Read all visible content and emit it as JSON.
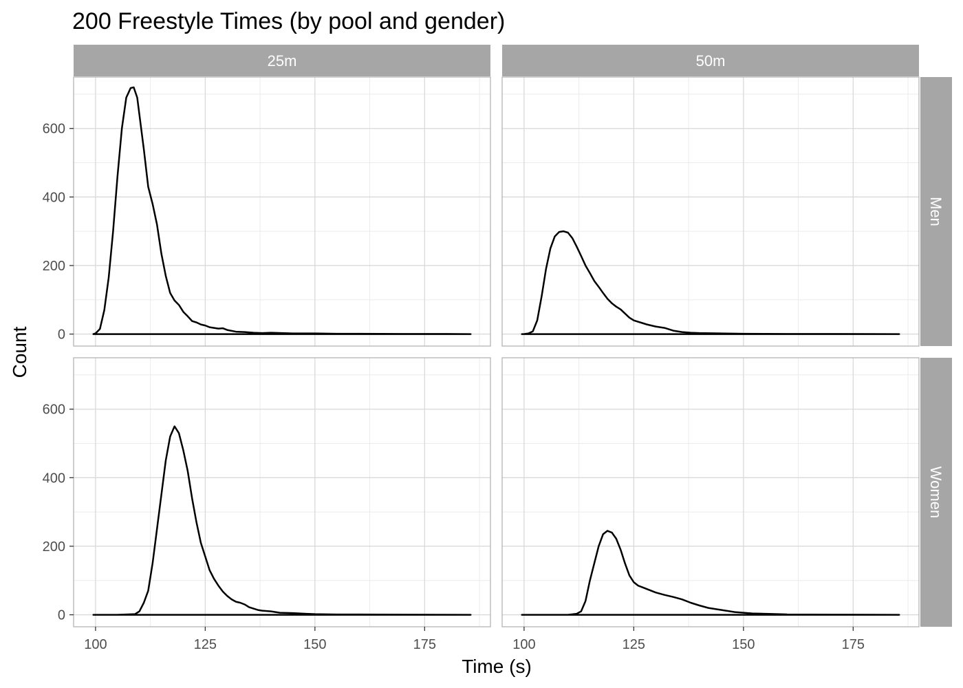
{
  "chart_data": {
    "type": "line",
    "title": "200 Freestyle Times (by pool and gender)",
    "xlabel": "Time (s)",
    "ylabel": "Count",
    "xlim": [
      95,
      190
    ],
    "ylim": [
      -35,
      750
    ],
    "x_ticks": [
      100,
      125,
      150,
      175
    ],
    "y_ticks": [
      0,
      200,
      400,
      600
    ],
    "grid": true,
    "facet_columns": [
      "25m",
      "50m"
    ],
    "facet_rows": [
      "Men",
      "Women"
    ],
    "line_color": "#000000",
    "strip_color": "#a6a6a6",
    "panels": [
      {
        "column": "25m",
        "row": "Men",
        "x": [
          99.5,
          100,
          101,
          102,
          103,
          104,
          105,
          106,
          107,
          108,
          108.7,
          109.5,
          110,
          111,
          112,
          113,
          114,
          115,
          116,
          117,
          118,
          119,
          120,
          121,
          122,
          123,
          124,
          125,
          126,
          127,
          128,
          129,
          130,
          132,
          134,
          136,
          138,
          140,
          145,
          150,
          155,
          160,
          170,
          180,
          185.5
        ],
        "y": [
          0,
          2,
          15,
          70,
          165,
          300,
          460,
          600,
          690,
          718,
          720,
          690,
          640,
          540,
          430,
          380,
          320,
          235,
          170,
          120,
          98,
          85,
          65,
          52,
          38,
          34,
          28,
          25,
          20,
          18,
          16,
          17,
          12,
          7,
          6,
          4,
          3,
          4,
          2,
          2,
          1,
          1,
          0.5,
          0.5,
          0
        ]
      },
      {
        "column": "50m",
        "row": "Men",
        "x": [
          99.5,
          100,
          101,
          102,
          103,
          104,
          105,
          106,
          107,
          108,
          109,
          110,
          111,
          112,
          113,
          114,
          115,
          116,
          117,
          118,
          119,
          120,
          121,
          122,
          123,
          124,
          125,
          126,
          127,
          128,
          129,
          130,
          132,
          134,
          136,
          138,
          140,
          145,
          150,
          160,
          170,
          185.5
        ],
        "y": [
          0,
          0,
          2,
          8,
          40,
          110,
          190,
          250,
          285,
          298,
          300,
          296,
          280,
          255,
          228,
          200,
          178,
          155,
          138,
          120,
          103,
          90,
          80,
          72,
          60,
          48,
          40,
          36,
          32,
          28,
          25,
          22,
          18,
          10,
          6,
          4,
          3,
          2,
          1,
          0.5,
          0.5,
          0
        ]
      },
      {
        "column": "25m",
        "row": "Women",
        "x": [
          99.5,
          105,
          109,
          110,
          111,
          112,
          113,
          114,
          115,
          116,
          117,
          118,
          119,
          120,
          121,
          122,
          123,
          124,
          125,
          126,
          127,
          128,
          129,
          130,
          131,
          132,
          133,
          134,
          135,
          136,
          137,
          138,
          140,
          142,
          145,
          148,
          150,
          155,
          160,
          170,
          185.5
        ],
        "y": [
          0,
          0,
          2,
          10,
          35,
          70,
          150,
          250,
          350,
          450,
          520,
          550,
          530,
          480,
          420,
          340,
          270,
          210,
          170,
          130,
          105,
          85,
          68,
          55,
          45,
          38,
          35,
          30,
          22,
          18,
          14,
          12,
          10,
          6,
          5,
          3,
          2,
          1,
          1,
          0.5,
          0
        ]
      },
      {
        "column": "50m",
        "row": "Women",
        "x": [
          99.5,
          110,
          112,
          113,
          114,
          115,
          116,
          117,
          118,
          119,
          120,
          121,
          122,
          123,
          124,
          125,
          126,
          127,
          128,
          129,
          130,
          132,
          134,
          136,
          138,
          140,
          142,
          144,
          146,
          148,
          150,
          152,
          155,
          160,
          170,
          185.5
        ],
        "y": [
          0,
          0,
          3,
          10,
          40,
          100,
          150,
          200,
          235,
          245,
          240,
          222,
          190,
          150,
          115,
          95,
          85,
          80,
          75,
          70,
          65,
          58,
          52,
          45,
          35,
          27,
          20,
          16,
          12,
          8,
          6,
          4,
          3,
          1,
          0.5,
          0
        ]
      }
    ]
  }
}
